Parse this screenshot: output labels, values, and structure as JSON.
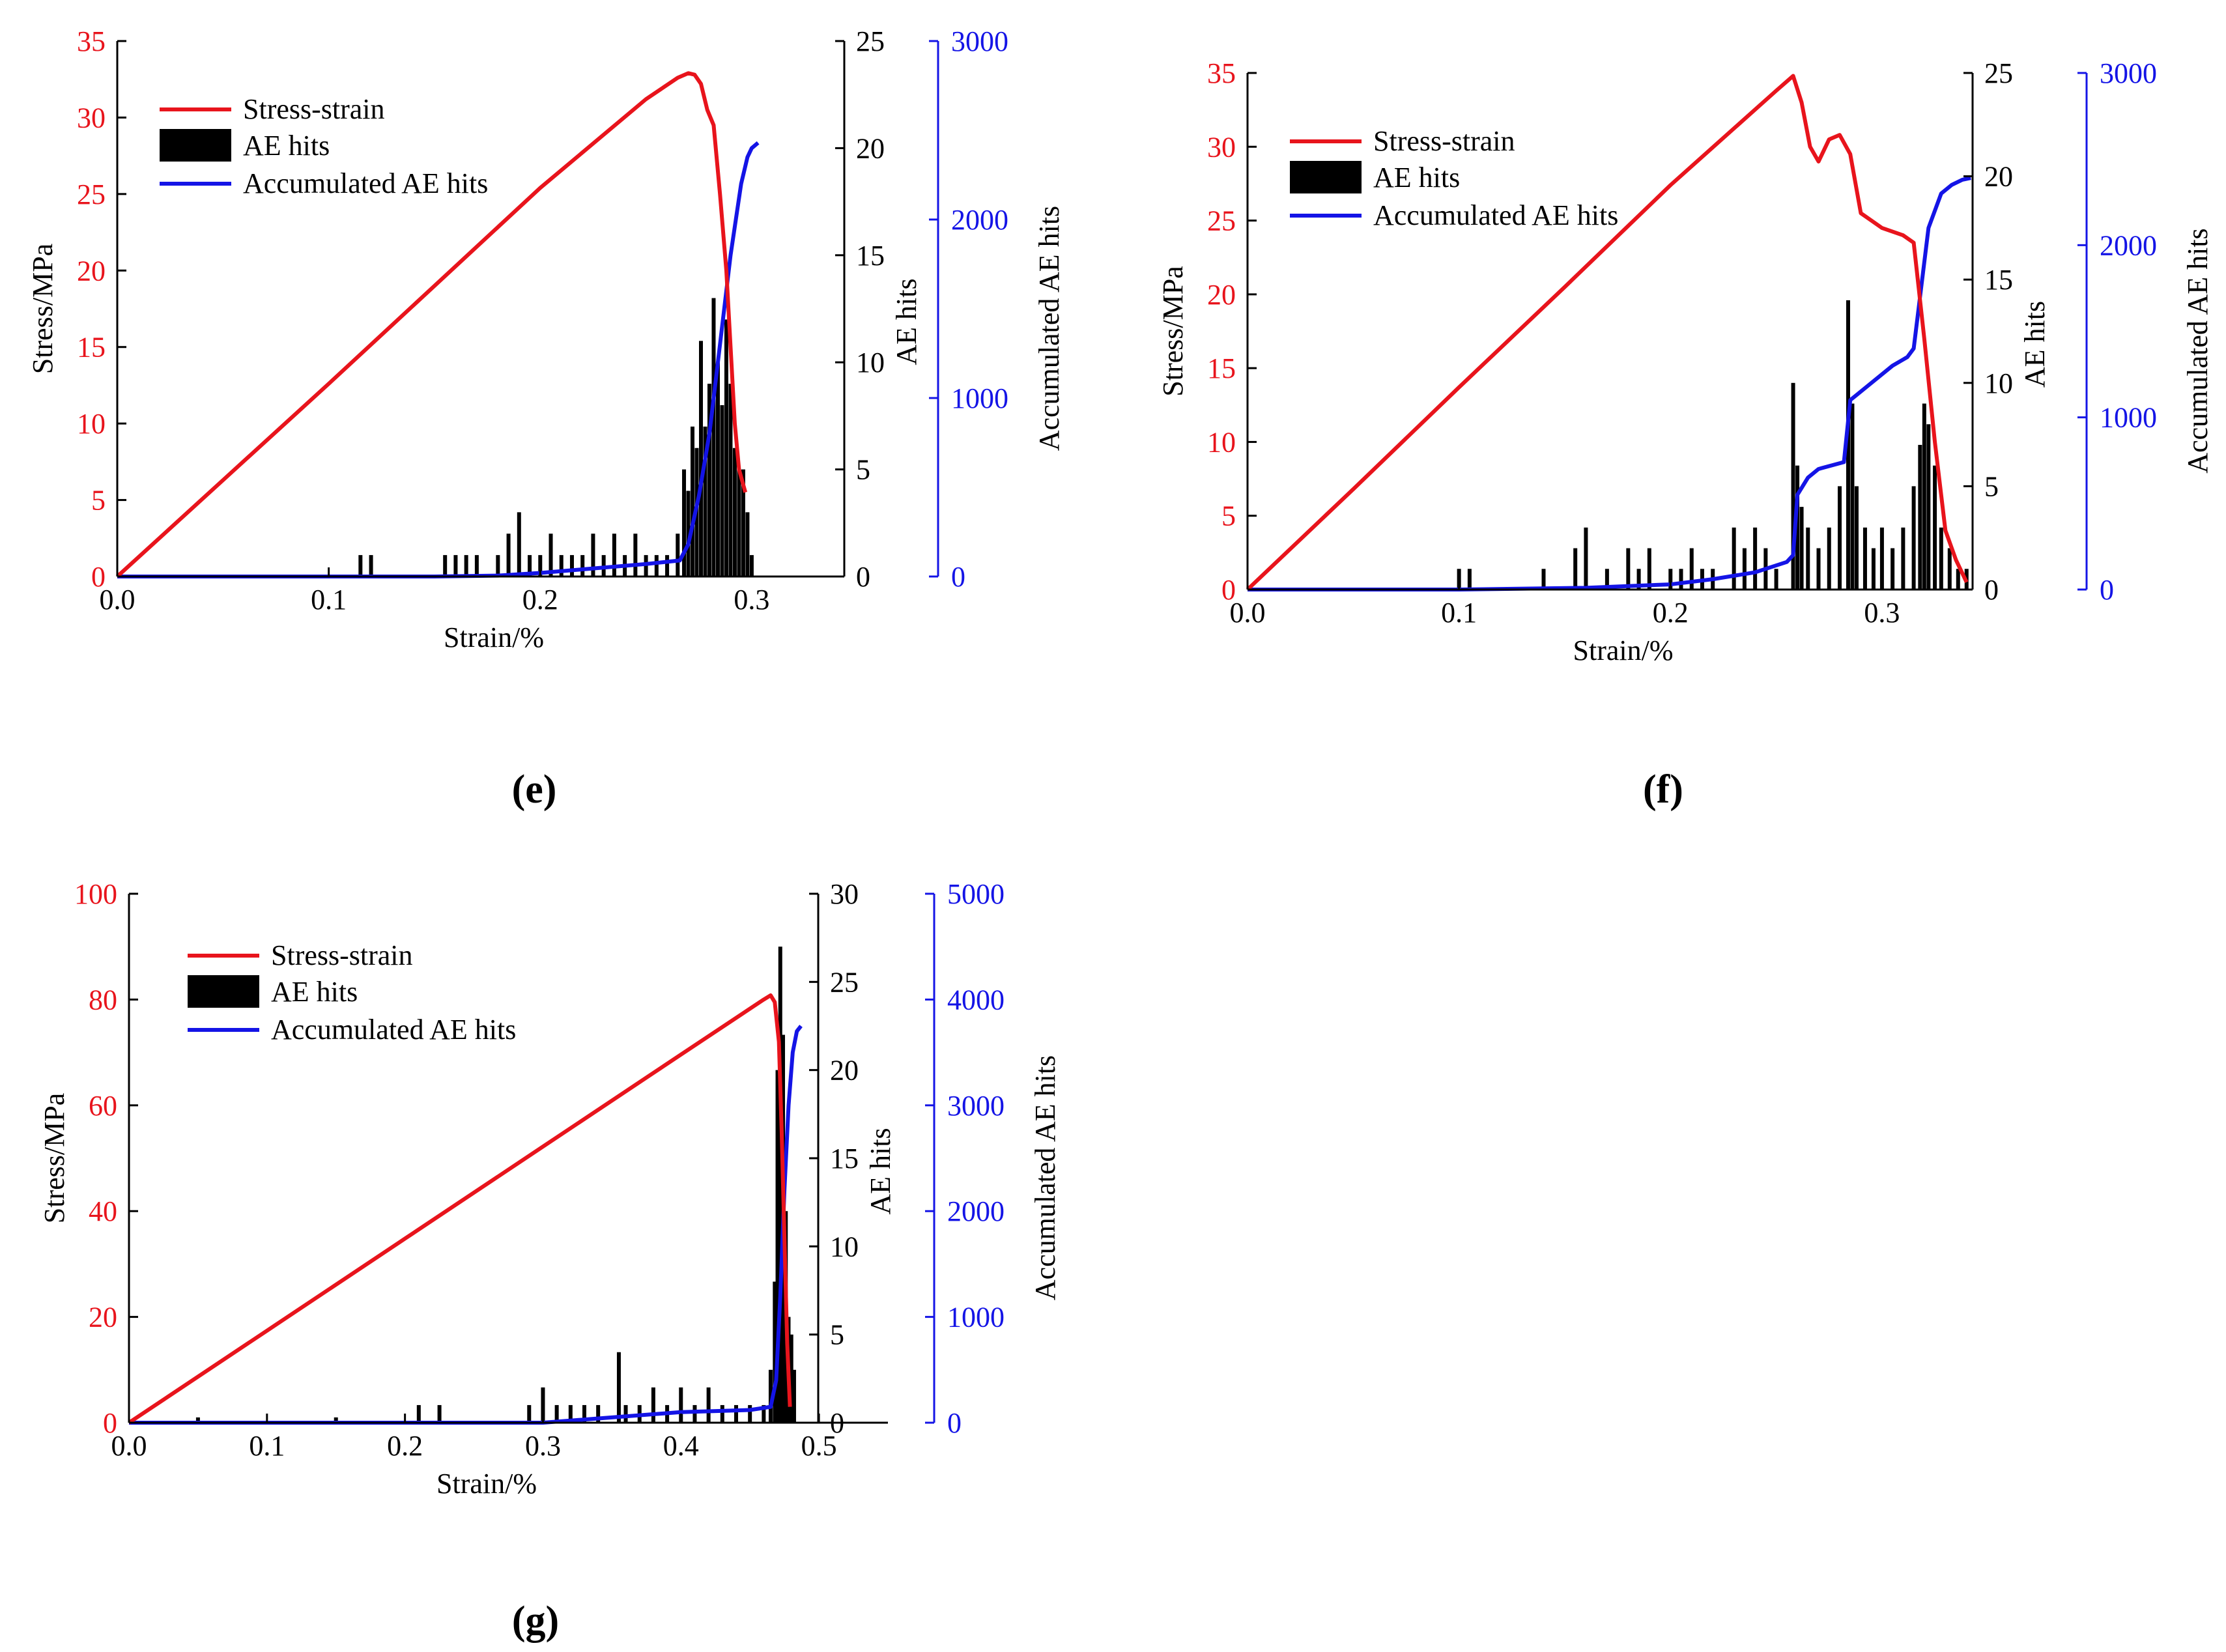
{
  "figure": {
    "legend_labels": {
      "stress": "Stress-strain",
      "hits": "AE hits",
      "accum": "Accumulated  AE hits"
    },
    "axis_titles": {
      "x": "Strain/%",
      "stress": "Stress/MPa",
      "hits": "AE hits",
      "accum": "Accumulated  AE hits"
    },
    "colors": {
      "stress": "#e8141c",
      "hits": "#000000",
      "accum": "#1414e6",
      "axis": "#000000"
    }
  },
  "chart_data": [
    {
      "id": "e",
      "type": "line+bar",
      "panel_label": "(e)",
      "title": "",
      "xlabel": "Strain/%",
      "ylabel_left": "Stress/MPa",
      "ylabel_hits": "AE hits",
      "ylabel_accum": "Accumulated  AE hits",
      "xlim": [
        0,
        0.345
      ],
      "xticks": [
        0.0,
        0.1,
        0.2,
        0.3
      ],
      "xtick_labels": [
        "0.0",
        "0.1",
        "0.2",
        "0.3"
      ],
      "stress_lim": [
        0,
        35
      ],
      "stress_ticks": [
        0,
        5,
        10,
        15,
        20,
        25,
        30,
        35
      ],
      "hits_lim": [
        0,
        25
      ],
      "hits_ticks": [
        0,
        5,
        10,
        15,
        20,
        25
      ],
      "accum_lim": [
        0,
        3000
      ],
      "accum_ticks": [
        0,
        1000,
        2000,
        3000
      ],
      "legend": [
        "Stress-strain",
        "AE hits",
        "Accumulated  AE hits"
      ],
      "legend_position": "top-left",
      "series": [
        {
          "name": "Stress-strain",
          "axis": "stress",
          "x": [
            0,
            0.05,
            0.1,
            0.15,
            0.2,
            0.25,
            0.265,
            0.27,
            0.273,
            0.276,
            0.279,
            0.282,
            0.285,
            0.288,
            0.29,
            0.292,
            0.294,
            0.297
          ],
          "y": [
            0,
            6.3,
            12.6,
            19.0,
            25.4,
            31.2,
            32.6,
            32.9,
            32.8,
            32.2,
            30.5,
            29.5,
            25.0,
            20.0,
            15.0,
            10.0,
            7.0,
            5.5
          ]
        },
        {
          "name": "Accumulated AE hits",
          "axis": "accum",
          "x": [
            0,
            0.15,
            0.18,
            0.2,
            0.22,
            0.25,
            0.266,
            0.27,
            0.275,
            0.28,
            0.285,
            0.29,
            0.295,
            0.298,
            0.3,
            0.303
          ],
          "y": [
            0,
            0,
            5,
            20,
            40,
            70,
            90,
            180,
            450,
            800,
            1300,
            1800,
            2200,
            2350,
            2400,
            2430
          ]
        },
        {
          "name": "AE hits",
          "axis": "hits",
          "x": [
            0.115,
            0.12,
            0.155,
            0.16,
            0.165,
            0.17,
            0.18,
            0.185,
            0.19,
            0.195,
            0.2,
            0.205,
            0.21,
            0.215,
            0.22,
            0.225,
            0.23,
            0.235,
            0.24,
            0.245,
            0.25,
            0.255,
            0.26,
            0.265,
            0.268,
            0.27,
            0.272,
            0.274,
            0.276,
            0.278,
            0.28,
            0.282,
            0.284,
            0.286,
            0.288,
            0.29,
            0.292,
            0.294,
            0.296,
            0.298,
            0.3
          ],
          "y": [
            1,
            1,
            1,
            1,
            1,
            1,
            1,
            2,
            3,
            1,
            1,
            2,
            1,
            1,
            1,
            2,
            1,
            2,
            1,
            2,
            1,
            1,
            1,
            2,
            5,
            4,
            7,
            6,
            11,
            7,
            9,
            13,
            10,
            8,
            12,
            9,
            6,
            5,
            5,
            3,
            1
          ]
        }
      ]
    },
    {
      "id": "f",
      "type": "line+bar",
      "panel_label": "(f)",
      "title": "",
      "xlabel": "Strain/%",
      "ylabel_left": "Stress/MPa",
      "ylabel_hits": "AE hits",
      "ylabel_accum": "Accumulated  AE hits",
      "xlim": [
        0,
        0.345
      ],
      "xticks": [
        0.0,
        0.1,
        0.2,
        0.3
      ],
      "xtick_labels": [
        "0.0",
        "0.1",
        "0.2",
        "0.3"
      ],
      "stress_lim": [
        0,
        35
      ],
      "stress_ticks": [
        0,
        5,
        10,
        15,
        20,
        25,
        30,
        35
      ],
      "hits_lim": [
        0,
        25
      ],
      "hits_ticks": [
        0,
        5,
        10,
        15,
        20,
        25
      ],
      "accum_lim": [
        0,
        3000
      ],
      "accum_ticks": [
        0,
        1000,
        2000,
        3000
      ],
      "legend": [
        "Stress-strain",
        "AE hits",
        "Accumulated  AE hits"
      ],
      "legend_position": "top-left",
      "series": [
        {
          "name": "Stress-strain",
          "axis": "stress",
          "x": [
            0,
            0.05,
            0.1,
            0.15,
            0.2,
            0.25,
            0.258,
            0.262,
            0.266,
            0.27,
            0.275,
            0.28,
            0.285,
            0.29,
            0.295,
            0.3,
            0.31,
            0.315,
            0.32,
            0.325,
            0.33,
            0.335,
            0.34
          ],
          "y": [
            0,
            6.8,
            13.7,
            20.5,
            27.4,
            33.8,
            34.8,
            33.0,
            30.0,
            29.0,
            30.5,
            30.8,
            29.5,
            25.5,
            25.0,
            24.5,
            24.0,
            23.5,
            17.0,
            10.0,
            4.0,
            2.0,
            0.5
          ]
        },
        {
          "name": "Accumulated AE hits",
          "axis": "accum",
          "x": [
            0,
            0.1,
            0.16,
            0.2,
            0.22,
            0.24,
            0.255,
            0.258,
            0.26,
            0.265,
            0.27,
            0.282,
            0.285,
            0.288,
            0.295,
            0.305,
            0.312,
            0.315,
            0.318,
            0.322,
            0.328,
            0.333,
            0.338,
            0.342
          ],
          "y": [
            0,
            0,
            10,
            30,
            60,
            100,
            160,
            200,
            550,
            650,
            700,
            740,
            1100,
            1130,
            1200,
            1300,
            1350,
            1400,
            1700,
            2100,
            2300,
            2350,
            2380,
            2390
          ]
        },
        {
          "name": "AE hits",
          "axis": "hits",
          "x": [
            0.1,
            0.105,
            0.14,
            0.155,
            0.16,
            0.17,
            0.18,
            0.185,
            0.19,
            0.2,
            0.205,
            0.21,
            0.215,
            0.22,
            0.23,
            0.235,
            0.24,
            0.245,
            0.25,
            0.258,
            0.26,
            0.262,
            0.265,
            0.27,
            0.275,
            0.28,
            0.284,
            0.286,
            0.288,
            0.292,
            0.296,
            0.3,
            0.305,
            0.31,
            0.315,
            0.318,
            0.32,
            0.322,
            0.325,
            0.328,
            0.332,
            0.336,
            0.34
          ],
          "y": [
            1,
            1,
            1,
            2,
            3,
            1,
            2,
            1,
            2,
            1,
            1,
            2,
            1,
            1,
            3,
            2,
            3,
            2,
            1,
            10,
            6,
            4,
            3,
            2,
            3,
            5,
            14,
            9,
            5,
            3,
            2,
            3,
            2,
            3,
            5,
            7,
            9,
            8,
            6,
            3,
            2,
            1,
            1
          ]
        }
      ]
    },
    {
      "id": "g",
      "type": "line+bar",
      "panel_label": "(g)",
      "title": "",
      "xlabel": "Strain/%",
      "ylabel_left": "Stress/MPa",
      "ylabel_hits": "AE hits",
      "ylabel_accum": "Accumulated  AE hits",
      "xlim": [
        0,
        0.55
      ],
      "xticks": [
        0.0,
        0.1,
        0.2,
        0.3,
        0.4,
        0.5
      ],
      "xtick_labels": [
        "0.0",
        "0.1",
        "0.2",
        "0.3",
        "0.4",
        "0.5"
      ],
      "stress_lim": [
        0,
        100
      ],
      "stress_ticks": [
        0,
        20,
        40,
        60,
        80,
        100
      ],
      "hits_lim": [
        0,
        30
      ],
      "hits_ticks": [
        0,
        5,
        10,
        15,
        20,
        25,
        30
      ],
      "accum_lim": [
        0,
        5000
      ],
      "accum_ticks": [
        0,
        1000,
        2000,
        3000,
        4000,
        5000
      ],
      "legend": [
        "Stress-strain",
        "AE hits",
        "Accumulated  AE hits"
      ],
      "legend_position": "top-left",
      "series": [
        {
          "name": "Stress-strain",
          "axis": "stress",
          "x": [
            0,
            0.1,
            0.2,
            0.3,
            0.4,
            0.46,
            0.465,
            0.468,
            0.471,
            0.473,
            0.475,
            0.477,
            0.479
          ],
          "y": [
            0,
            17.4,
            34.8,
            52.2,
            69.6,
            80.0,
            80.8,
            79.5,
            72.0,
            55.0,
            35.0,
            15.0,
            3.0
          ]
        },
        {
          "name": "Accumulated AE hits",
          "axis": "accum",
          "x": [
            0,
            0.3,
            0.35,
            0.4,
            0.45,
            0.465,
            0.469,
            0.472,
            0.475,
            0.478,
            0.481,
            0.484,
            0.487
          ],
          "y": [
            0,
            0,
            50,
            100,
            120,
            150,
            400,
            1200,
            2200,
            3000,
            3500,
            3700,
            3750
          ]
        },
        {
          "name": "AE hits",
          "axis": "hits",
          "x": [
            0.05,
            0.15,
            0.21,
            0.225,
            0.29,
            0.3,
            0.31,
            0.32,
            0.33,
            0.34,
            0.355,
            0.36,
            0.37,
            0.38,
            0.39,
            0.4,
            0.41,
            0.42,
            0.43,
            0.44,
            0.45,
            0.46,
            0.465,
            0.468,
            0.47,
            0.472,
            0.474,
            0.476,
            0.478,
            0.48,
            0.482
          ],
          "y": [
            0.3,
            0.3,
            1,
            1,
            1,
            2,
            1,
            1,
            1,
            1,
            4,
            1,
            1,
            2,
            1,
            2,
            1,
            2,
            1,
            1,
            1,
            1,
            3,
            8,
            20,
            27,
            22,
            12,
            6,
            5,
            3
          ]
        }
      ]
    }
  ]
}
